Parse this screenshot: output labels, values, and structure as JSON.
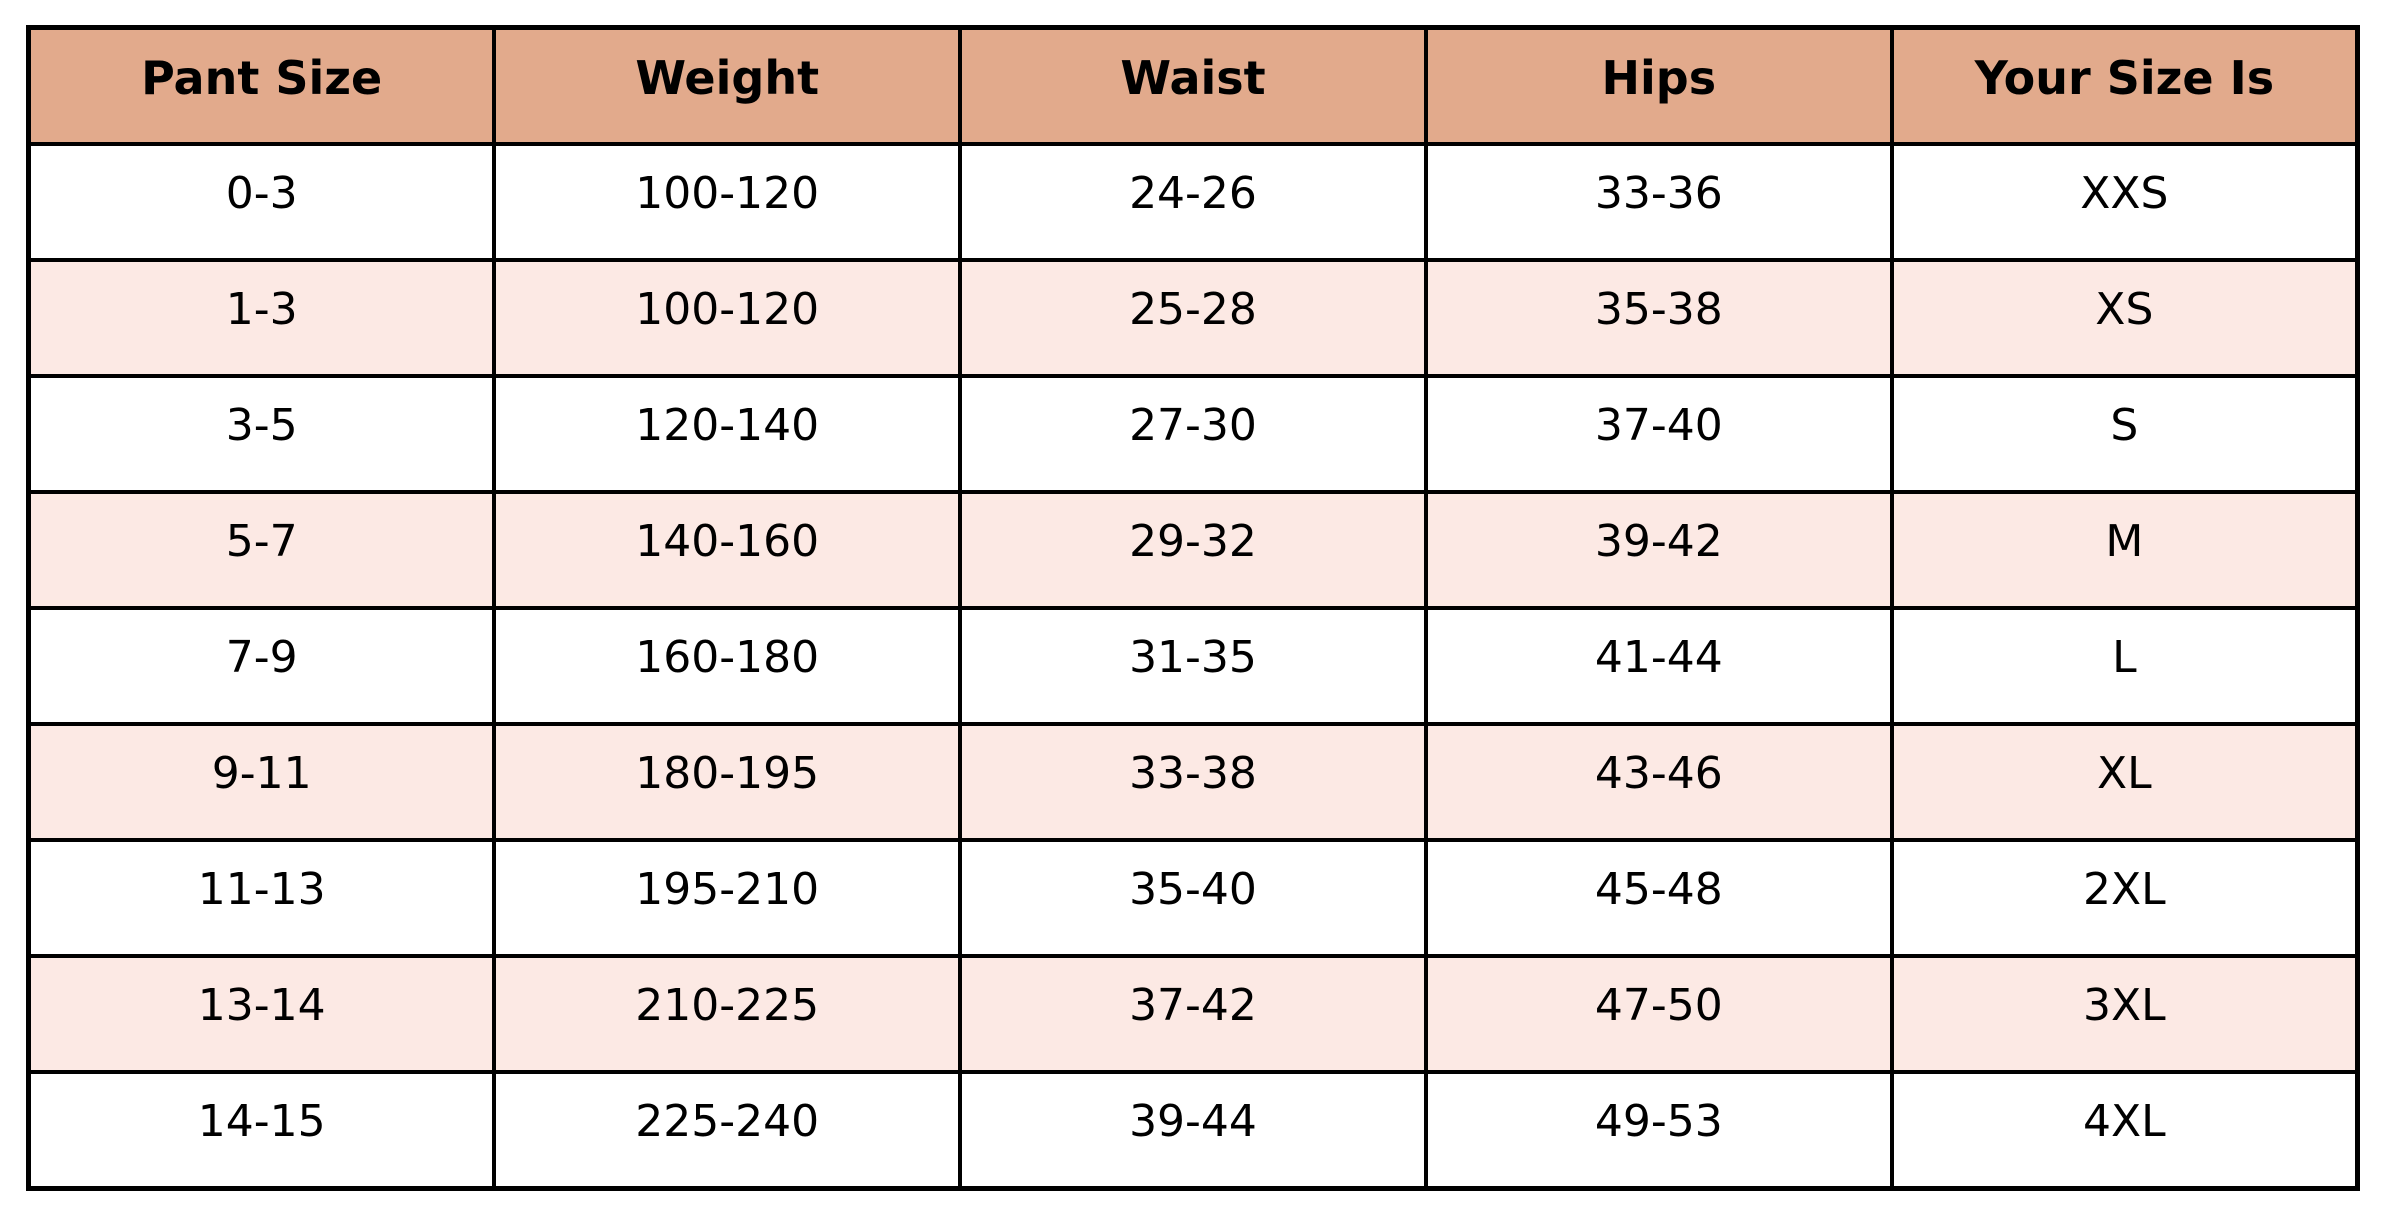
{
  "chart_data": {
    "type": "table",
    "columns": [
      "Pant Size",
      "Weight",
      "Waist",
      "Hips",
      "Your Size Is"
    ],
    "rows": [
      [
        "0-3",
        "100-120",
        "24-26",
        "33-36",
        "XXS"
      ],
      [
        "1-3",
        "100-120",
        "25-28",
        "35-38",
        "XS"
      ],
      [
        "3-5",
        "120-140",
        "27-30",
        "37-40",
        "S"
      ],
      [
        "5-7",
        "140-160",
        "29-32",
        "39-42",
        "M"
      ],
      [
        "7-9",
        "160-180",
        "31-35",
        "41-44",
        "L"
      ],
      [
        "9-11",
        "180-195",
        "33-38",
        "43-46",
        "XL"
      ],
      [
        "11-13",
        "195-210",
        "35-40",
        "45-48",
        "2XL"
      ],
      [
        "13-14",
        "210-225",
        "37-42",
        "47-50",
        "3XL"
      ],
      [
        "14-15",
        "225-240",
        "39-44",
        "49-53",
        "4XL"
      ]
    ]
  },
  "colors": {
    "header_bg": "#e2aa8c",
    "stripe_bg": "#fce9e4",
    "row_bg": "#ffffff",
    "border": "#000000",
    "text": "#000000",
    "page_bg": "#ffffff"
  }
}
